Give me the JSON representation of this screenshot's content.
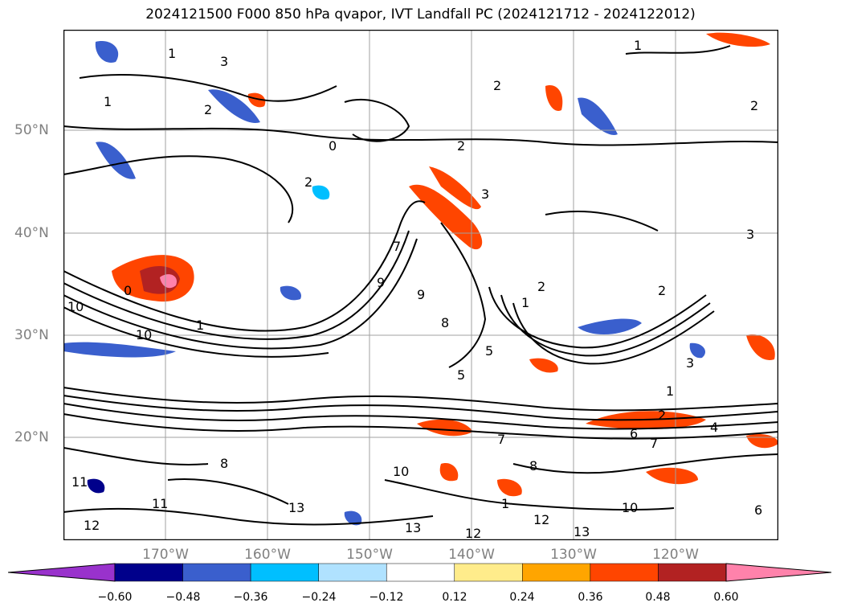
{
  "title": "2024121500 F000 850 hPa qvapor, IVT Landfall PC (2024121712 - 2024122012)",
  "lat_labels": [
    "50°N",
    "40°N",
    "30°N",
    "20°N"
  ],
  "lon_labels": [
    "170°W",
    "160°W",
    "150°W",
    "140°W",
    "130°W",
    "120°W"
  ],
  "colorbar": {
    "ticks": [
      "−0.60",
      "−0.48",
      "−0.36",
      "−0.24",
      "−0.12",
      "0.12",
      "0.24",
      "0.36",
      "0.48",
      "0.60"
    ],
    "colors": [
      "#9932cc",
      "#00008b",
      "#3a5fcd",
      "#00bfff",
      "#b0e2ff",
      "#ffffff",
      "#ffec8b",
      "#ffa500",
      "#ff4500",
      "#b22222",
      "#ff82ab"
    ]
  },
  "contour_labels": [
    "1",
    "2",
    "3",
    "1",
    "0",
    "2",
    "2",
    "2",
    "1",
    "2",
    "3",
    "2",
    "3",
    "0",
    "10",
    "1",
    "10",
    "7",
    "9",
    "9",
    "8",
    "5",
    "5",
    "7",
    "1",
    "1",
    "2",
    "4",
    "6",
    "7",
    "10",
    "12",
    "11",
    "13",
    "13",
    "10",
    "12",
    "13",
    "12",
    "1",
    "6",
    "8",
    "11",
    "3",
    "2",
    "8"
  ]
}
